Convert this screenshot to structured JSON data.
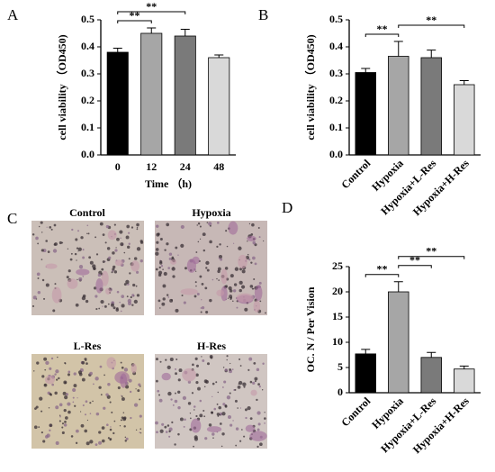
{
  "chart_data": [
    {
      "type": "bar",
      "panel": "A",
      "xlabel": "Time （h)",
      "ylabel": "cell viability （OD450)",
      "categories": [
        "0",
        "12",
        "24",
        "48"
      ],
      "values": [
        0.38,
        0.45,
        0.44,
        0.36
      ],
      "errors": [
        0.015,
        0.02,
        0.025,
        0.01
      ],
      "colors": [
        "#000000",
        "#a6a6a6",
        "#7a7a7a",
        "#d9d9d9"
      ],
      "ylim": [
        0,
        0.5
      ],
      "yticks": [
        {
          "value": 0,
          "label": "0.0"
        },
        0.1,
        0.2,
        0.3,
        0.4,
        0.5
      ],
      "xtick_rotation": 0,
      "annotations": [
        {
          "text": "**",
          "between": [
            "0",
            "12"
          ]
        },
        {
          "text": "**",
          "between": [
            "0",
            "24"
          ]
        }
      ]
    },
    {
      "type": "bar",
      "panel": "B",
      "ylabel": "cell viability （OD450)",
      "categories": [
        "Control",
        "Hypoxia",
        "Hypoxia+L-Res",
        "Hypoxia+H-Res"
      ],
      "values": [
        0.305,
        0.365,
        0.36,
        0.26
      ],
      "errors": [
        0.015,
        0.055,
        0.028,
        0.015
      ],
      "colors": [
        "#000000",
        "#a6a6a6",
        "#7a7a7a",
        "#d9d9d9"
      ],
      "ylim": [
        0,
        0.5
      ],
      "yticks": [
        {
          "value": 0,
          "label": "0.0"
        },
        0.1,
        0.2,
        0.3,
        0.4,
        0.5
      ],
      "xtick_rotation": 45,
      "annotations": [
        {
          "text": "**",
          "between": [
            "Control",
            "Hypoxia"
          ]
        },
        {
          "text": "**",
          "between": [
            "Hypoxia",
            "Hypoxia+H-Res"
          ]
        }
      ]
    },
    {
      "type": "bar",
      "panel": "D",
      "ylabel": "OC. N / Per Vision",
      "categories": [
        "Control",
        "Hypoxia",
        "Hypoxia+L-Res",
        "Hypoxia+H-Res"
      ],
      "values": [
        7.7,
        20,
        7,
        4.7
      ],
      "errors": [
        0.9,
        2,
        1,
        0.6
      ],
      "colors": [
        "#000000",
        "#a6a6a6",
        "#7a7a7a",
        "#d9d9d9"
      ],
      "ylim": [
        0,
        25
      ],
      "yticks": [
        0,
        5,
        10,
        15,
        20,
        25
      ],
      "xtick_rotation": 45,
      "annotations": [
        {
          "text": "**",
          "between": [
            "Control",
            "Hypoxia"
          ]
        },
        {
          "text": "**",
          "between": [
            "Hypoxia",
            "Hypoxia+L-Res"
          ]
        },
        {
          "text": "**",
          "between": [
            "Hypoxia",
            "Hypoxia+H-Res"
          ]
        }
      ]
    }
  ],
  "micrographs": {
    "panel": "C",
    "labels": [
      "Control",
      "Hypoxia",
      "L-Res",
      "H-Res"
    ]
  }
}
